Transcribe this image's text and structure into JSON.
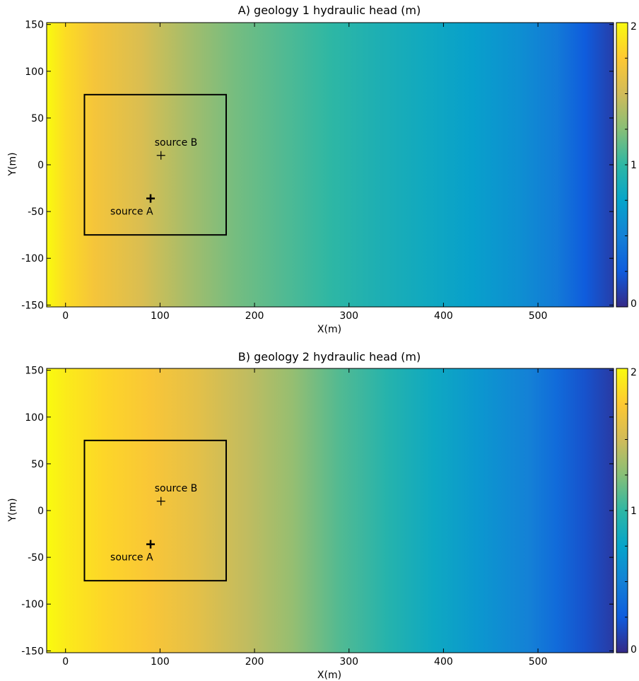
{
  "chart_data": [
    {
      "type": "heatmap",
      "title": "A) geology 1 hydraulic head (m)",
      "xlabel": "X(m)",
      "ylabel": "Y(m)",
      "xlim": [
        -20,
        580
      ],
      "ylim": [
        -152,
        152
      ],
      "xticks": [
        0,
        100,
        200,
        300,
        400,
        500
      ],
      "yticks": [
        150,
        100,
        50,
        0,
        -50,
        -100,
        -150
      ],
      "x_tick_labels": [
        "0",
        "100",
        "200",
        "300",
        "400",
        "500"
      ],
      "y_tick_labels": [
        "150",
        "100",
        "50",
        "0",
        "-50",
        "-100",
        "-150"
      ],
      "colorbar": {
        "range": [
          0,
          2
        ],
        "ticks": [
          2,
          1,
          0
        ],
        "tick_labels": [
          "2",
          "1",
          "0"
        ]
      },
      "head_profile": {
        "x": [
          -20,
          0,
          30,
          80,
          130,
          180,
          230,
          280,
          330,
          380,
          430,
          480,
          520,
          550,
          580
        ],
        "head": [
          2.0,
          1.85,
          1.7,
          1.55,
          1.35,
          1.2,
          1.1,
          1.0,
          0.9,
          0.82,
          0.72,
          0.6,
          0.45,
          0.25,
          0.1
        ]
      },
      "box": {
        "x0": 20,
        "x1": 170,
        "y0": -75,
        "y1": 75
      },
      "sources": [
        {
          "label": "source A",
          "x": 90,
          "y": -36
        },
        {
          "label": "source B",
          "x": 101,
          "y": 10
        }
      ]
    },
    {
      "type": "heatmap",
      "title": "B) geology 2 hydraulic head (m)",
      "xlabel": "X(m)",
      "ylabel": "Y(m)",
      "xlim": [
        -20,
        580
      ],
      "ylim": [
        -152,
        152
      ],
      "xticks": [
        0,
        100,
        200,
        300,
        400,
        500
      ],
      "yticks": [
        150,
        100,
        50,
        0,
        -50,
        -100,
        -150
      ],
      "x_tick_labels": [
        "0",
        "100",
        "200",
        "300",
        "400",
        "500"
      ],
      "y_tick_labels": [
        "150",
        "100",
        "50",
        "0",
        "-50",
        "-100",
        "-150"
      ],
      "colorbar": {
        "range": [
          0,
          2
        ],
        "ticks": [
          2,
          1,
          0
        ],
        "tick_labels": [
          "2",
          "1",
          "0"
        ]
      },
      "head_profile": {
        "x": [
          -20,
          0,
          40,
          90,
          140,
          190,
          240,
          290,
          340,
          390,
          440,
          490,
          520,
          550,
          580
        ],
        "head": [
          2.0,
          1.92,
          1.82,
          1.72,
          1.6,
          1.45,
          1.3,
          1.1,
          0.95,
          0.8,
          0.65,
          0.5,
          0.35,
          0.2,
          0.08
        ]
      },
      "box": {
        "x0": 20,
        "x1": 170,
        "y0": -75,
        "y1": 75
      },
      "sources": [
        {
          "label": "source A",
          "x": 90,
          "y": -36
        },
        {
          "label": "source B",
          "x": 101,
          "y": 10
        }
      ]
    }
  ],
  "colormap": [
    "#352a87",
    "#0f5cdd",
    "#1481d6",
    "#06a4ca",
    "#2eb7a4",
    "#87bf77",
    "#d1bb59",
    "#fec832",
    "#f9fb0e"
  ]
}
